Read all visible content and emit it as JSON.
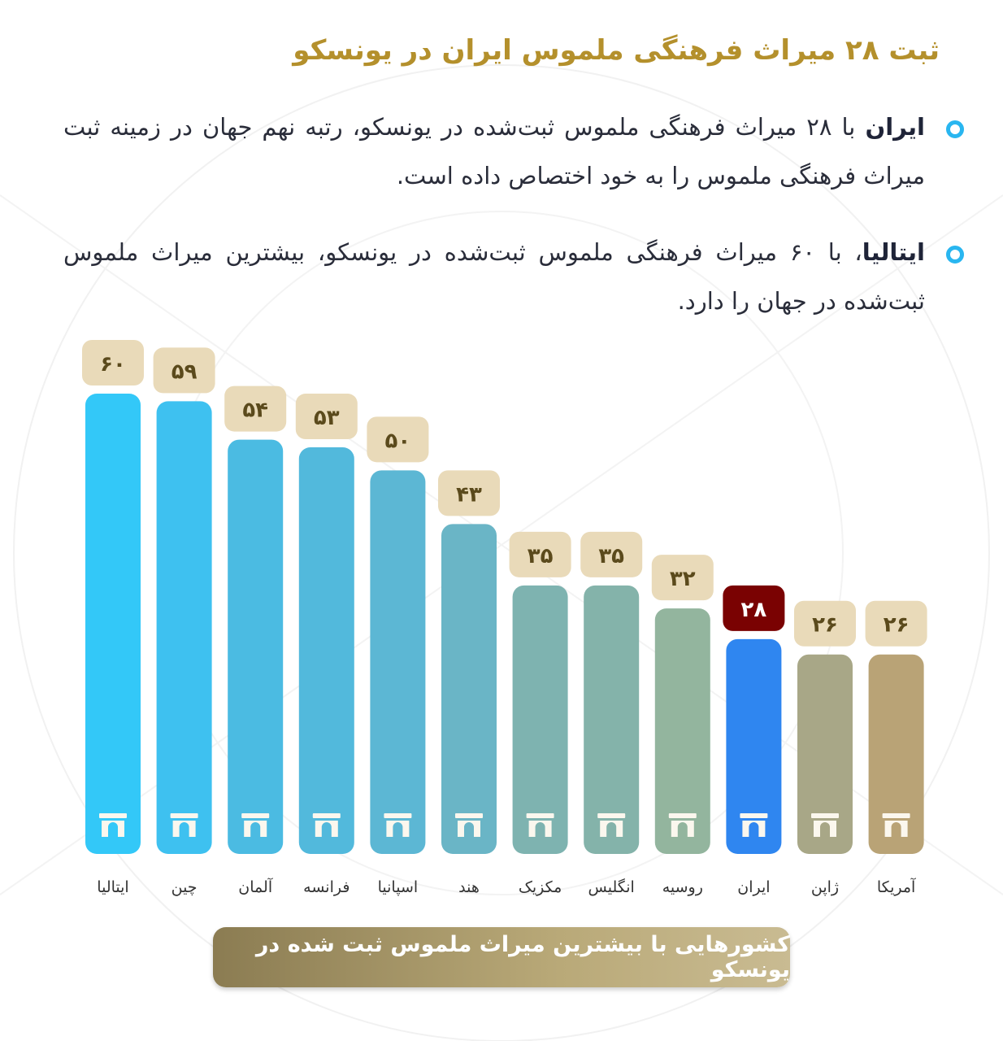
{
  "header": {
    "title": "ثبت ۲۸ میراث فرهنگی ملموس ایران در یونسکو"
  },
  "bullets": [
    {
      "bold": "ایران",
      "text": " با ۲۸ میراث فرهنگی ملموس ثبت‌شده در یونسکو، رتبه نهم جهان در زمینه ثبت میراث فرهنگی ملموس را به خود اختصاص داده است."
    },
    {
      "bold": "ایتالیا",
      "text": "، با ۶۰ میراث فرهنگی ملموس ثبت‌شده در یونسکو، بیشترین میراث ملموس ثبت‌شده در جهان را دارد."
    }
  ],
  "chart_data": {
    "type": "bar",
    "title": "کشورهایی با بیشترین میراث ملموس ثبت شده در یونسکو",
    "categories": [
      "ایتالیا",
      "چین",
      "آلمان",
      "فرانسه",
      "اسپانیا",
      "هند",
      "مکزیک",
      "انگلیس",
      "روسیه",
      "ایران",
      "ژاپن",
      "آمریکا"
    ],
    "values": [
      60,
      59,
      54,
      53,
      50,
      43,
      35,
      35,
      32,
      28,
      26,
      26
    ],
    "value_labels": [
      "۶۰",
      "۵۹",
      "۵۴",
      "۵۳",
      "۵۰",
      "۴۳",
      "۳۵",
      "۳۵",
      "۳۲",
      "۲۸",
      "۲۶",
      "۲۶"
    ],
    "ylim": [
      0,
      60
    ],
    "grid": false,
    "icon": "monument-arch-icon",
    "bar_colors": [
      "#33c8f8",
      "#3ec1f0",
      "#4bbbe2",
      "#52b9dc",
      "#5cb7d4",
      "#6ab5c6",
      "#7eb3b0",
      "#84b3aa",
      "#93b59e",
      "#2f86f0",
      "#a8a787",
      "#b9a376"
    ],
    "highlight": {
      "category": "ایران",
      "badge_color": "#7a0202",
      "badge_text_color": "#ffffff"
    },
    "badge_color": "#e9dab9",
    "badge_text_color": "#5b4a1c"
  }
}
